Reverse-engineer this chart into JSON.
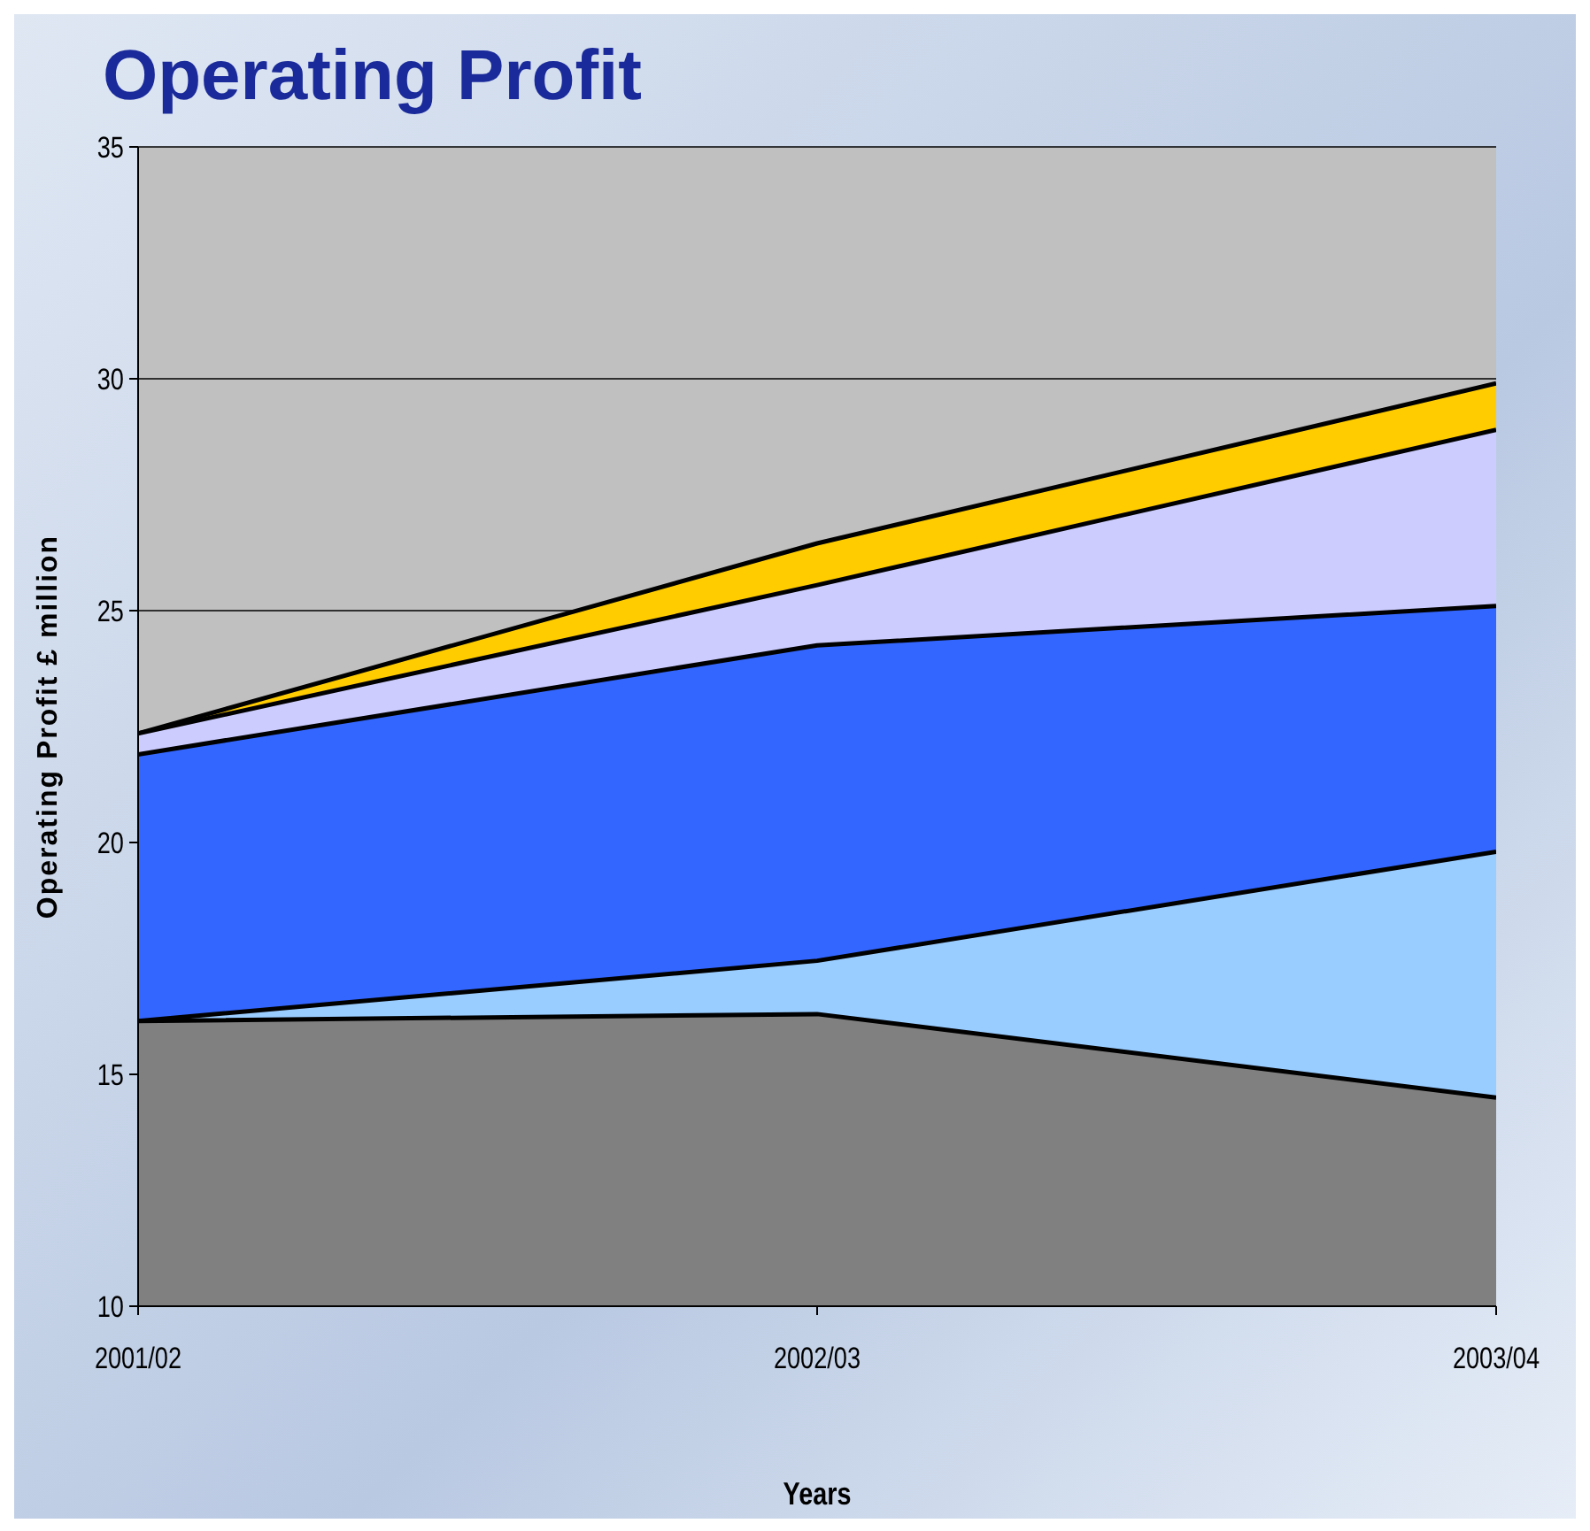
{
  "chart_data": {
    "type": "area",
    "title": "Operating Profit",
    "xlabel": "Years",
    "ylabel": "Operating Profit £ million",
    "categories": [
      "2001/02",
      "2002/03",
      "2003/04"
    ],
    "series": [
      {
        "color": "#ffcc00",
        "values": [
          22.35,
          26.45,
          29.9
        ]
      },
      {
        "color": "#ccccff",
        "values": [
          22.35,
          25.55,
          28.9
        ]
      },
      {
        "color": "#3366ff",
        "values": [
          21.9,
          24.25,
          25.1
        ]
      },
      {
        "color": "#99ccff",
        "values": [
          16.15,
          17.45,
          19.8
        ]
      },
      {
        "color": "#808080",
        "values": [
          16.15,
          16.3,
          14.5
        ]
      }
    ],
    "ylim": [
      10,
      35
    ],
    "yticks": [
      10,
      15,
      20,
      25,
      30,
      35
    ],
    "grid": "y"
  }
}
